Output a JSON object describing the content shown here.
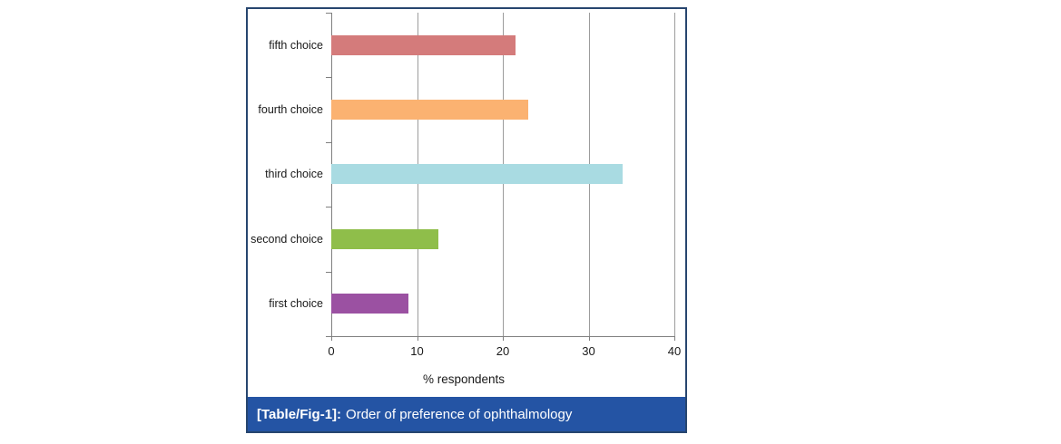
{
  "figure": {
    "caption_prefix": "[Table/Fig-1]:",
    "caption_text": "Order of preference of ophthalmology",
    "caption_bg": "#2454A4",
    "border_color": "#27466F"
  },
  "chart_data": {
    "type": "bar",
    "orientation": "horizontal",
    "categories": [
      "fifth choice",
      "fourth choice",
      "third choice",
      "second choice",
      "first choice"
    ],
    "values": [
      21.5,
      23,
      34,
      12.5,
      9
    ],
    "bar_colors": [
      "#D47B7B",
      "#FBB271",
      "#A9DBE2",
      "#8FBE4A",
      "#9B51A2"
    ],
    "title": "",
    "xlabel": "% respondents",
    "ylabel": "",
    "xlim": [
      0,
      40
    ],
    "xticks": [
      0,
      10,
      20,
      30,
      40
    ],
    "grid": "vertical gridlines on",
    "legend": "none",
    "gridline_color": "#9c9c9c",
    "axis_color": "#7f7f7f"
  }
}
